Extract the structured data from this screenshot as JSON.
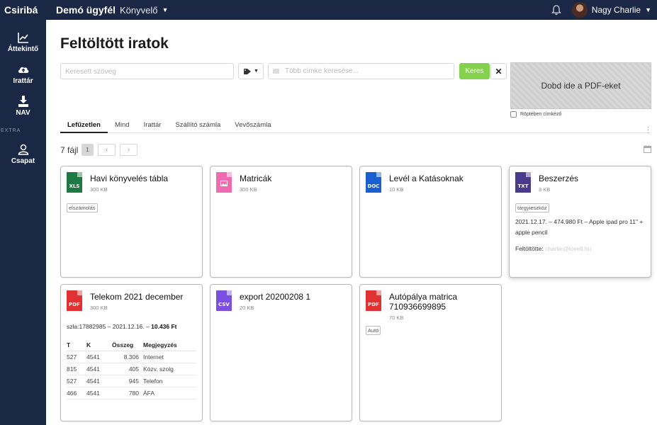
{
  "topbar": {
    "brand": "Csiribá",
    "client_name": "Demó ügyfél",
    "client_role": "Könyvelő",
    "user_name": "Nagy Charlie",
    "bell_icon": "bell-icon"
  },
  "sidebar": {
    "items": [
      {
        "label": "Áttekintő",
        "icon": "chart-icon"
      },
      {
        "label": "Irattár",
        "icon": "cloud-upload-icon"
      },
      {
        "label": "NAV",
        "icon": "download-icon"
      }
    ],
    "extra_label": "EXTRA",
    "extra_items": [
      {
        "label": "Csapat",
        "icon": "user-icon"
      }
    ]
  },
  "page": {
    "title": "Feltöltött iratok",
    "search_placeholder": "Keresett szöveg",
    "tags_placeholder": "Több címke keresése...",
    "search_button": "Keres",
    "clear_button": "✕",
    "dropzone_text": "Dobd ide a PDF-eket",
    "fly_label": "Röptében címkéző",
    "tabs": [
      "Lefűzetlen",
      "Mind",
      "Irattár",
      "Szállító számla",
      "Vevőszámla"
    ],
    "active_tab": "Lefűzetlen",
    "file_count": "7 fájl",
    "page_number": "1"
  },
  "colors": {
    "nav_bg": "#1b2845",
    "accent_green": "#84d14d",
    "xls": "#1e7a45",
    "img": "#f06aaf",
    "doc": "#1a5fd0",
    "txt": "#4a3a8c",
    "pdf": "#e03232",
    "csv": "#7b4fe0"
  },
  "files": [
    {
      "title": "Havi könyvelés tábla",
      "size": "300 KB",
      "type": "XLS",
      "tag": "elszámolás"
    },
    {
      "title": "Matricák",
      "size": "300 KB",
      "type": "image"
    },
    {
      "title": "Levél a Katásoknak",
      "size": "10 KB",
      "type": "DOC"
    },
    {
      "title": "Beszerzés",
      "size": "3 KB",
      "type": "TXT",
      "tag": "tárgyieszköz",
      "note": "2021.12.17. – 474.980 Ft – Apple ipad pro 11\" + apple pencil",
      "uploader_label": "Feltöltötte:",
      "uploader": "charlie@lovelt.hu"
    },
    {
      "title": "Telekom 2021 december",
      "size": "300 KB",
      "type": "PDF",
      "invoice_line_prefix": "szla:17882985 – 2021.12.16. –",
      "invoice_total": "10.436 Ft",
      "table": {
        "headers": [
          "T",
          "K",
          "Összeg",
          "Megjegyzés"
        ],
        "rows": [
          [
            "527",
            "4541",
            "8.306",
            "Internet"
          ],
          [
            "815",
            "4541",
            "405",
            "Közv. szolg"
          ],
          [
            "527",
            "4541",
            "945",
            "Telefon"
          ],
          [
            "466",
            "4541",
            "780",
            "ÁFA"
          ]
        ]
      }
    },
    {
      "title": "export 20200208 1",
      "size": "20 KB",
      "type": "CSV"
    },
    {
      "title": "Autópálya matrica 710936699895",
      "size": "70 KB",
      "type": "PDF",
      "tag": "Autó"
    }
  ]
}
